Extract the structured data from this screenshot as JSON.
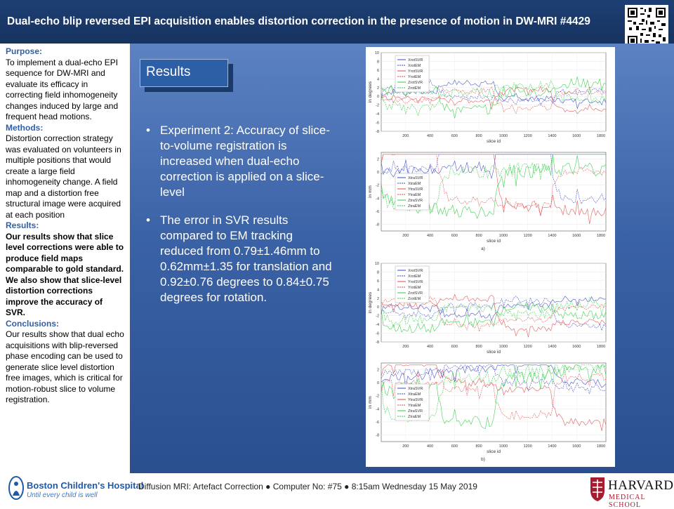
{
  "header": {
    "title": "Dual-echo blip reversed EPI acquisition enables distortion correction in the presence of motion in DW-MRI #4429"
  },
  "left": {
    "purpose_h": "Purpose:",
    "purpose": "To implement a dual-echo EPI sequence for DW-MRI and evaluate its efficacy in correcting field inhomogeneity changes induced by large and frequent head motions.",
    "methods_h": "Methods:",
    "methods": "Distortion correction strategy was evaluated on volunteers in multiple positions that would create a large field inhomogeneity change. A field map and a distortion free structural image were acquired at each position",
    "results_h": "Results:",
    "results": "Our results show that slice level corrections were able to produce field maps comparable to gold standard.  We also show that slice-level distortion corrections improve the accuracy of SVR.",
    "conclusions_h": "Conclusions:",
    "conclusions": "Our results show that dual echo acquisitions with blip-reversed phase encoding can be used to generate slice level distortion free images, which is critical for motion-robust slice to volume registration."
  },
  "results_label": "Results",
  "bullets": [
    "Experiment 2: Accuracy of slice-to-volume registration is increased when dual-echo correction is applied on a slice-level",
    "The error in SVR results compared to EM tracking reduced from 0.79±1.46mm to 0.62mm±1.35 for translation and 0.92±0.76 degrees to 0.84±0.75 degrees for rotation."
  ],
  "bullet_glyph": "•",
  "figures": {
    "xlabel": "slice id",
    "panel_a": "a)",
    "panel_b": "b)",
    "xticks": [
      "200",
      "400",
      "600",
      "800",
      "1000",
      "1200",
      "1400",
      "1600",
      "1800"
    ],
    "rot_ylabel": "in degrees",
    "rot_yticks": [
      "10",
      "8",
      "6",
      "4",
      "2",
      "0",
      "-2",
      "-4",
      "-6",
      "-8"
    ],
    "tra_ylabel": "in mm",
    "tra_yticks": [
      "2",
      "0",
      "-2",
      "-4",
      "-6",
      "-8"
    ],
    "rot_legend": [
      "XrotSVR",
      "XrotEM",
      "YrotSVR",
      "YrotEM",
      "ZrotSVR",
      "ZrotEM"
    ],
    "tra_legend": [
      "XtraSVR",
      "XtraEM",
      "YtraSVR",
      "YtraEM",
      "ZtraSVR",
      "ZtraEM"
    ],
    "series_colors": [
      "#3a46c9",
      "#3a46c9",
      "#e14b4b",
      "#e14b4b",
      "#2ecc40",
      "#2ecc40"
    ]
  },
  "footer": {
    "text": "Diffusion MRI: Artefact Correction ● Computer  No: #75 ● 8:15am Wednesday 15 May 2019",
    "bch_name": "Boston Children's Hospital",
    "bch_tagline": "Until every child is well",
    "harvard": "HARVARD",
    "harvard_sub": "MEDICAL SCHOOL"
  },
  "colors": {
    "header_bg": "#1d3f74",
    "accent": "#2f5fa8",
    "harvard_red": "#a51c30"
  }
}
